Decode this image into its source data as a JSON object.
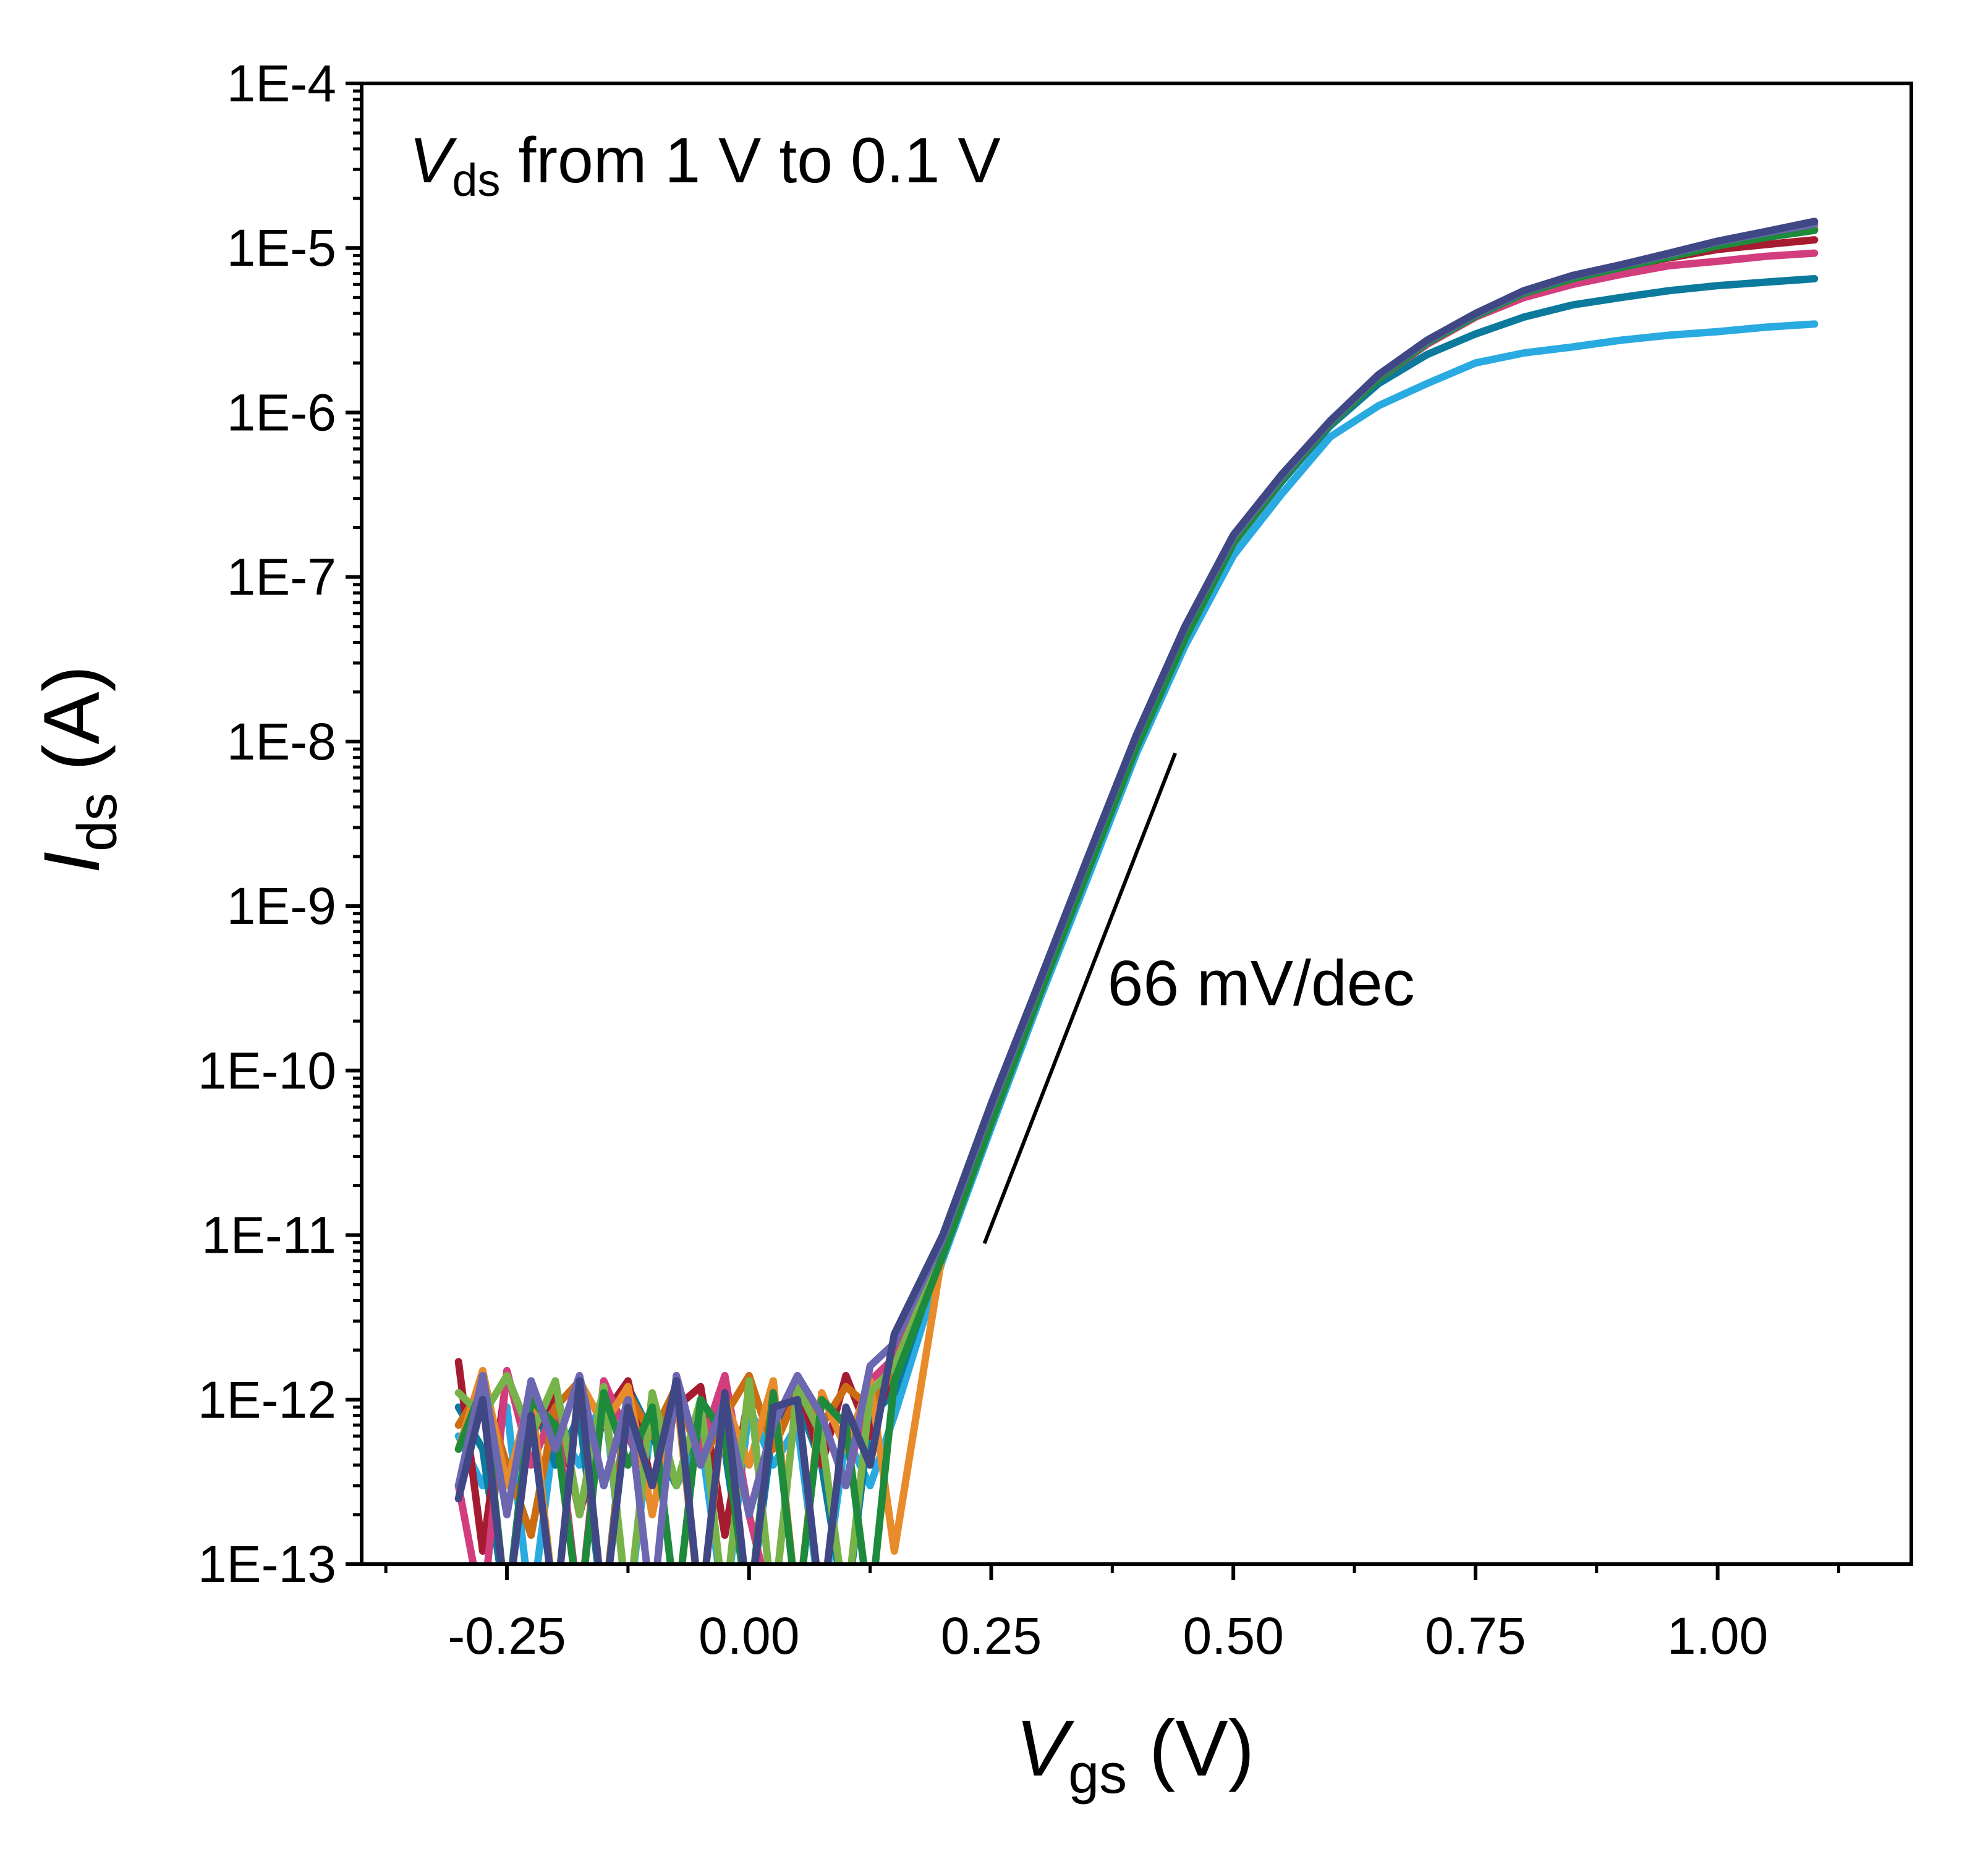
{
  "chart_data": {
    "type": "line",
    "annotation_vds": {
      "var": "V",
      "sub": "ds",
      "text": " from 1 V to 0.1 V"
    },
    "slope_label": "66 mV/dec",
    "slope_line": {
      "x": [
        0.243,
        0.44
      ],
      "y": [
        8.9e-12,
        8.5e-09
      ]
    },
    "slope_label_pos": {
      "x": 0.37,
      "y": 2.5e-10
    },
    "xlabel": {
      "var": "V",
      "sub": "gs",
      "unit": " (V)"
    },
    "ylabel": {
      "var": "I",
      "sub": "ds",
      "unit": " (A)"
    },
    "xlim": [
      -0.4,
      1.2
    ],
    "ylim": [
      1e-13,
      0.0001
    ],
    "yscale": "log",
    "grid": false,
    "legend": "none",
    "x_ticks": [
      "-0.25",
      "0.00",
      "0.25",
      "0.50",
      "0.75",
      "1.00"
    ],
    "y_ticks": [
      "1E-13",
      "1E-12",
      "1E-11",
      "1E-10",
      "1E-9",
      "1E-8",
      "1E-7",
      "1E-6",
      "1E-5",
      "1E-4"
    ],
    "x": [
      -0.3,
      -0.275,
      -0.25,
      -0.225,
      -0.2,
      -0.175,
      -0.15,
      -0.125,
      -0.1,
      -0.075,
      -0.05,
      -0.025,
      0,
      0.025,
      0.05,
      0.075,
      0.1,
      0.125,
      0.15,
      0.2,
      0.25,
      0.3,
      0.35,
      0.4,
      0.45,
      0.5,
      0.55,
      0.6,
      0.65,
      0.7,
      0.75,
      0.8,
      0.85,
      0.9,
      0.95,
      1.0,
      1.05,
      1.1
    ],
    "series": [
      {
        "color": "#29abe2",
        "values": [
          6e-13,
          3e-13,
          9e-13,
          5e-14,
          7e-13,
          4e-13,
          1.1e-12,
          5e-14,
          8e-13,
          3e-13,
          6e-13,
          5e-14,
          9e-13,
          4e-13,
          7e-13,
          5e-14,
          6e-13,
          3e-13,
          8e-13,
          7.1e-12,
          4.5e-11,
          2.7e-10,
          1.5e-09,
          8.5e-09,
          3.8e-08,
          1.35e-07,
          3.2e-07,
          7.1e-07,
          1.1e-06,
          1.5e-06,
          2e-06,
          2.3e-06,
          2.5e-06,
          2.75e-06,
          2.95e-06,
          3.1e-06,
          3.3e-06,
          3.45e-06
        ]
      },
      {
        "color": "#0b7a9c",
        "values": [
          9e-13,
          5e-13,
          5e-14,
          1.1e-12,
          4e-13,
          8e-13,
          5e-14,
          1.2e-12,
          6e-13,
          3e-13,
          9e-13,
          5e-13,
          5e-14,
          7e-13,
          1e-12,
          4e-13,
          5e-14,
          8e-13,
          1.1e-12,
          8.5e-12,
          5.4e-11,
          3.1e-10,
          1.8e-09,
          9.8e-09,
          4.5e-08,
          1.6e-07,
          3.8e-07,
          8.3e-07,
          1.5e-06,
          2.25e-06,
          3e-06,
          3.8e-06,
          4.5e-06,
          5e-06,
          5.5e-06,
          5.9e-06,
          6.2e-06,
          6.5e-06
        ]
      },
      {
        "color": "#a51c30",
        "values": [
          1.7e-12,
          1.2e-13,
          1.4e-12,
          6e-13,
          1.1e-12,
          2e-13,
          8e-13,
          1.3e-12,
          3e-13,
          9e-13,
          1.2e-12,
          1.5e-13,
          1.1e-12,
          7e-13,
          1.3e-12,
          4e-13,
          1.4e-12,
          6e-13,
          1.6e-12,
          8e-12,
          5e-11,
          3e-10,
          1.7e-09,
          9.5e-09,
          4.3e-08,
          1.6e-07,
          3.9e-07,
          8.5e-07,
          1.6e-06,
          2.6e-06,
          3.8e-06,
          5.4e-06,
          6.5e-06,
          7.6e-06,
          8.7e-06,
          9.8e-06,
          1.05e-05,
          1.12e-05
        ]
      },
      {
        "color": "#d23d7e",
        "values": [
          3e-13,
          5e-14,
          1.5e-12,
          4e-13,
          9e-13,
          5e-14,
          1.3e-12,
          6e-13,
          3e-13,
          1.1e-12,
          5e-13,
          1.4e-12,
          2e-13,
          5e-14,
          1.2e-12,
          8e-13,
          3e-13,
          1.3e-12,
          1.8e-12,
          8e-12,
          5e-11,
          3e-10,
          1.7e-09,
          9.5e-09,
          4.3e-08,
          1.6e-07,
          3.9e-07,
          8.5e-07,
          1.6e-06,
          2.6e-06,
          3.8e-06,
          5e-06,
          6e-06,
          6.9e-06,
          7.8e-06,
          8.3e-06,
          8.9e-06,
          9.3e-06
        ]
      },
      {
        "color": "#cc6d14",
        "values": [
          7e-13,
          1.2e-12,
          4e-13,
          1.5e-13,
          9e-13,
          1.3e-12,
          5e-14,
          1.1e-12,
          6e-13,
          1.2e-12,
          4e-13,
          8e-13,
          1.4e-12,
          5e-13,
          1.1e-12,
          7e-13,
          1.2e-12,
          9e-13,
          1.5e-12,
          8.5e-12,
          5.4e-11,
          3.2e-10,
          1.8e-09,
          1e-08,
          4.6e-08,
          1.7e-07,
          4e-07,
          8.7e-07,
          1.65e-06,
          2.7e-06,
          3.9e-06,
          5.4e-06,
          6.6e-06,
          7.7e-06,
          9e-06,
          1.06e-05,
          1.2e-05,
          1.32e-05
        ]
      },
      {
        "color": "#e88b2b",
        "values": [
          5e-13,
          1.5e-12,
          3e-13,
          1.1e-12,
          5e-14,
          1.3e-12,
          7e-13,
          1.2e-12,
          2e-13,
          1.1e-12,
          5e-14,
          1e-12,
          4e-13,
          1.3e-12,
          5e-14,
          1.1e-12,
          5e-13,
          1.3e-12,
          1.2e-13,
          8e-12,
          5e-11,
          3e-10,
          1.7e-09,
          9.5e-09,
          4.4e-08,
          1.65e-07,
          4e-07,
          8.7e-07,
          1.65e-06,
          2.7e-06,
          3.9e-06,
          5.4e-06,
          6.6e-06,
          7.7e-06,
          9e-06,
          1.06e-05,
          1.21e-05,
          1.35e-05
        ]
      },
      {
        "color": "#78b34a",
        "values": [
          1.1e-12,
          8e-13,
          1.4e-12,
          6e-13,
          1.3e-12,
          2e-13,
          1.2e-12,
          5e-14,
          1.1e-12,
          3e-13,
          1e-12,
          5e-14,
          1.3e-12,
          5e-14,
          1.2e-12,
          6e-13,
          5e-14,
          1.1e-12,
          1.6e-12,
          8e-12,
          5e-11,
          3e-10,
          1.7e-09,
          9.5e-09,
          4.3e-08,
          1.6e-07,
          3.9e-07,
          8.5e-07,
          1.6e-06,
          2.65e-06,
          3.85e-06,
          5.3e-06,
          6.5e-06,
          7.6e-06,
          8.9e-06,
          1.04e-05,
          1.18e-05,
          1.3e-05
        ]
      },
      {
        "color": "#1e8a3c",
        "values": [
          5e-13,
          1.2e-12,
          5e-14,
          1e-12,
          7e-13,
          5e-14,
          1.1e-12,
          4e-13,
          9e-13,
          5e-14,
          1e-12,
          6e-13,
          5e-14,
          1.1e-12,
          5e-14,
          1e-12,
          7e-13,
          5e-14,
          1.3e-12,
          7.5e-12,
          4.8e-11,
          2.9e-10,
          1.65e-09,
          9.2e-09,
          4.2e-08,
          1.6e-07,
          3.9e-07,
          8.5e-07,
          1.6e-06,
          2.65e-06,
          3.85e-06,
          5.3e-06,
          6.5e-06,
          7.6e-06,
          8.8e-06,
          1.03e-05,
          1.16e-05,
          1.28e-05
        ]
      },
      {
        "color": "#6b67b0",
        "values": [
          3e-13,
          1.4e-12,
          2e-13,
          1.3e-12,
          5e-13,
          1.4e-12,
          3e-13,
          1e-12,
          5e-14,
          1.4e-12,
          4e-13,
          1e-12,
          2e-13,
          7e-13,
          1.4e-12,
          8e-13,
          3e-13,
          1.6e-12,
          2.2e-12,
          9.5e-12,
          6e-11,
          3.4e-10,
          1.95e-09,
          1.08e-08,
          4.9e-08,
          1.75e-07,
          4.1e-07,
          8.8e-07,
          1.68e-06,
          2.72e-06,
          3.95e-06,
          5.45e-06,
          6.75e-06,
          7.85e-06,
          9.2e-06,
          1.09e-05,
          1.24e-05,
          1.4e-05
        ]
      },
      {
        "color": "#3f4785",
        "values": [
          2.5e-13,
          1e-12,
          5e-14,
          8e-13,
          5e-14,
          1.3e-12,
          5e-14,
          9e-13,
          3e-13,
          1.3e-12,
          5e-14,
          1.1e-12,
          5e-14,
          9e-13,
          1e-12,
          5e-14,
          9e-13,
          4e-13,
          2.5e-12,
          1e-11,
          6.3e-11,
          3.5e-10,
          2e-09,
          1.1e-08,
          5e-08,
          1.8e-07,
          4.2e-07,
          8.9e-07,
          1.7e-06,
          2.75e-06,
          4e-06,
          5.5e-06,
          6.8e-06,
          7.9e-06,
          9.3e-06,
          1.1e-05,
          1.26e-05,
          1.45e-05
        ]
      }
    ]
  }
}
